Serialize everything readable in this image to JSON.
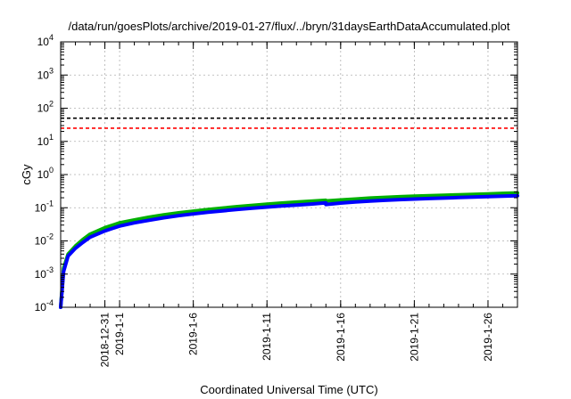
{
  "chart_data": {
    "type": "line",
    "title": "/data/run/goesPlots/archive/2019-01-27/flux/../bryn/31daysEarthDataAccumulated.plot",
    "xlabel": "Coordinated Universal Time (UTC)",
    "ylabel": "cGy",
    "y_scale": "log",
    "ylim": [
      0.0001,
      10000
    ],
    "x_range_days_from_2018_12_28": [
      0,
      31
    ],
    "grid": true,
    "y_ticks": [
      {
        "base": "10",
        "exp": "-4",
        "value": 0.0001
      },
      {
        "base": "10",
        "exp": "-3",
        "value": 0.001
      },
      {
        "base": "10",
        "exp": "-2",
        "value": 0.01
      },
      {
        "base": "10",
        "exp": "-1",
        "value": 0.1
      },
      {
        "base": "10",
        "exp": "0",
        "value": 1
      },
      {
        "base": "10",
        "exp": "1",
        "value": 10
      },
      {
        "base": "10",
        "exp": "2",
        "value": 100
      },
      {
        "base": "10",
        "exp": "3",
        "value": 1000
      },
      {
        "base": "10",
        "exp": "4",
        "value": 10000
      }
    ],
    "x_ticks": [
      {
        "label": "2018-12-31",
        "day": 3
      },
      {
        "label": "2019-1-1",
        "day": 4
      },
      {
        "label": "2019-1-6",
        "day": 9
      },
      {
        "label": "2019-1-11",
        "day": 14
      },
      {
        "label": "2019-1-16",
        "day": 19
      },
      {
        "label": "2019-1-21",
        "day": 24
      },
      {
        "label": "2019-1-26",
        "day": 29
      }
    ],
    "reference_lines": [
      {
        "value": 50,
        "color": "#000000",
        "style": "dashed"
      },
      {
        "value": 25,
        "color": "#ff0000",
        "style": "dashed"
      }
    ],
    "series": [
      {
        "color": "#00b000",
        "x": [
          0,
          0.2,
          0.5,
          1,
          1.5,
          2,
          3,
          4,
          5,
          6,
          7,
          8,
          9,
          10,
          11,
          12,
          13,
          14,
          15,
          16,
          17,
          17.99,
          18,
          19,
          20,
          21,
          22,
          23,
          24,
          25,
          26,
          27,
          28,
          29,
          30,
          31
        ],
        "y": [
          0.0001,
          0.0015,
          0.004,
          0.007,
          0.011,
          0.016,
          0.025,
          0.035,
          0.043,
          0.052,
          0.061,
          0.07,
          0.079,
          0.088,
          0.098,
          0.108,
          0.118,
          0.128,
          0.138,
          0.148,
          0.158,
          0.168,
          0.16,
          0.172,
          0.183,
          0.195,
          0.205,
          0.215,
          0.223,
          0.23,
          0.238,
          0.246,
          0.254,
          0.262,
          0.271,
          0.28
        ]
      },
      {
        "color": "#0000ff",
        "x": [
          0,
          0.2,
          0.5,
          1,
          1.5,
          2,
          3,
          4,
          5,
          6,
          7,
          8,
          9,
          10,
          11,
          12,
          13,
          14,
          15,
          16,
          17,
          17.99,
          18,
          19,
          20,
          21,
          22,
          23,
          24,
          25,
          26,
          27,
          28,
          29,
          30,
          31
        ],
        "y": [
          0.0001,
          0.0012,
          0.0035,
          0.006,
          0.009,
          0.013,
          0.02,
          0.028,
          0.035,
          0.042,
          0.05,
          0.058,
          0.065,
          0.073,
          0.081,
          0.089,
          0.097,
          0.105,
          0.113,
          0.121,
          0.129,
          0.14,
          0.125,
          0.138,
          0.149,
          0.159,
          0.168,
          0.176,
          0.183,
          0.19,
          0.196,
          0.203,
          0.21,
          0.216,
          0.223,
          0.23
        ]
      }
    ]
  }
}
